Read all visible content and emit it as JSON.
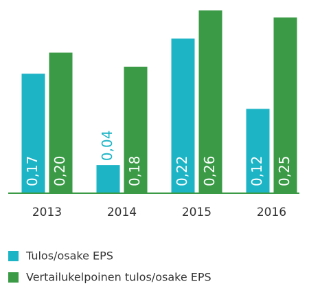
{
  "chart_data": {
    "type": "bar",
    "categories": [
      "2013",
      "2014",
      "2015",
      "2016"
    ],
    "series": [
      {
        "name": "Tulos/osake EPS",
        "color": "#1db4c6",
        "values": [
          0.17,
          0.04,
          0.22,
          0.12
        ],
        "value_labels": [
          "0,17",
          "0,04",
          "0,22",
          "0,12"
        ]
      },
      {
        "name": "Vertailukelpoinen tulos/osake EPS",
        "color": "#3a9a46",
        "values": [
          0.2,
          0.18,
          0.26,
          0.25
        ],
        "value_labels": [
          "0,20",
          "0,18",
          "0,26",
          "0,25"
        ]
      }
    ],
    "ylim": [
      0,
      0.27
    ],
    "legend": "bottom"
  }
}
